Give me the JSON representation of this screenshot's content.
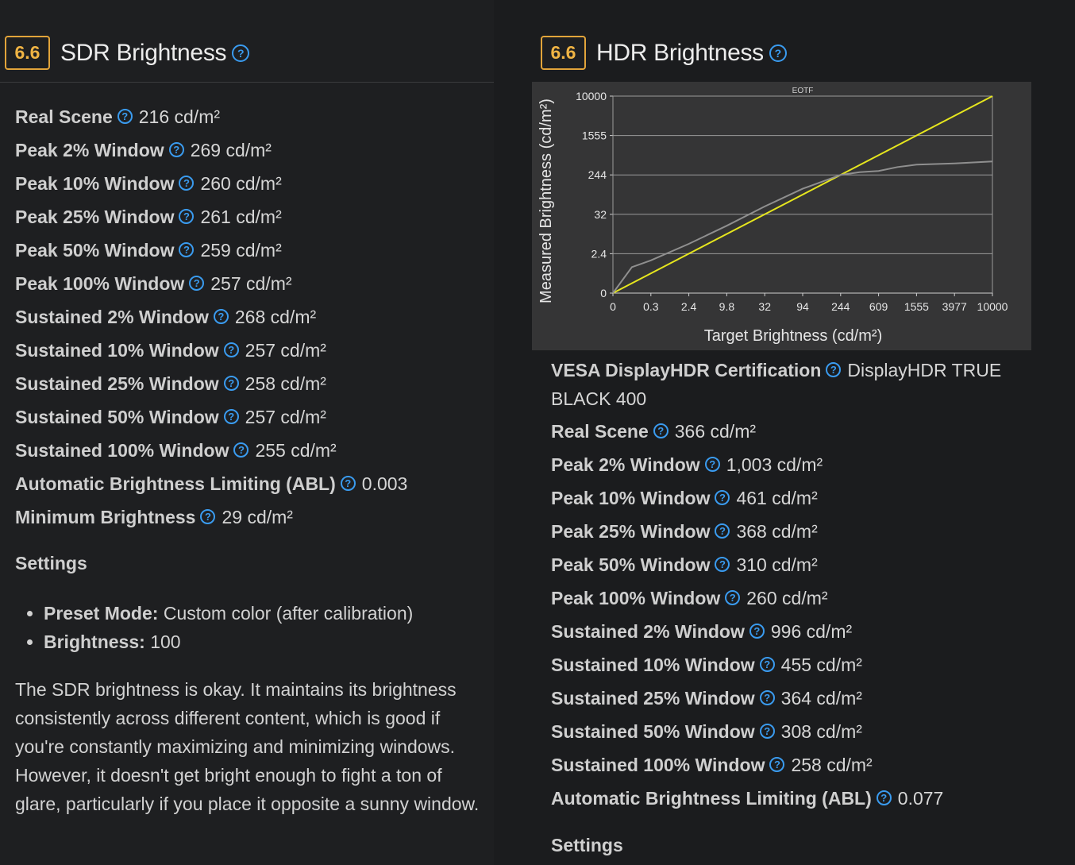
{
  "sdr": {
    "score": "6.6",
    "title": "SDR Brightness",
    "metrics": [
      {
        "label": "Real Scene",
        "value": "216 cd/m²"
      },
      {
        "label": "Peak 2% Window",
        "value": "269 cd/m²"
      },
      {
        "label": "Peak 10% Window",
        "value": "260 cd/m²"
      },
      {
        "label": "Peak 25% Window",
        "value": "261 cd/m²"
      },
      {
        "label": "Peak 50% Window",
        "value": "259 cd/m²"
      },
      {
        "label": "Peak 100% Window",
        "value": "257 cd/m²"
      },
      {
        "label": "Sustained 2% Window",
        "value": "268 cd/m²"
      },
      {
        "label": "Sustained 10% Window",
        "value": "257 cd/m²"
      },
      {
        "label": "Sustained 25% Window",
        "value": "258 cd/m²"
      },
      {
        "label": "Sustained 50% Window",
        "value": "257 cd/m²"
      },
      {
        "label": "Sustained 100% Window",
        "value": "255 cd/m²"
      },
      {
        "label": "Automatic Brightness Limiting (ABL)",
        "value": "0.003"
      },
      {
        "label": "Minimum Brightness",
        "value": "29 cd/m²"
      }
    ],
    "settings_heading": "Settings",
    "settings": [
      {
        "label": "Preset Mode:",
        "value": "Custom color (after calibration)"
      },
      {
        "label": "Brightness:",
        "value": "100"
      }
    ],
    "description": "The SDR brightness is okay. It maintains its brightness consistently across different content, which is good if you're constantly maximizing and minimizing windows. However, it doesn't get bright enough to fight a ton of glare, particularly if you place it opposite a sunny window."
  },
  "hdr": {
    "score": "6.6",
    "title": "HDR Brightness",
    "certification": {
      "label": "VESA DisplayHDR Certification",
      "value": "DisplayHDR TRUE BLACK 400"
    },
    "metrics": [
      {
        "label": "Real Scene",
        "value": "366 cd/m²"
      },
      {
        "label": "Peak 2% Window",
        "value": "1,003 cd/m²"
      },
      {
        "label": "Peak 10% Window",
        "value": "461 cd/m²"
      },
      {
        "label": "Peak 25% Window",
        "value": "368 cd/m²"
      },
      {
        "label": "Peak 50% Window",
        "value": "310 cd/m²"
      },
      {
        "label": "Peak 100% Window",
        "value": "260 cd/m²"
      },
      {
        "label": "Sustained 2% Window",
        "value": "996 cd/m²"
      },
      {
        "label": "Sustained 10% Window",
        "value": "455 cd/m²"
      },
      {
        "label": "Sustained 25% Window",
        "value": "364 cd/m²"
      },
      {
        "label": "Sustained 50% Window",
        "value": "308 cd/m²"
      },
      {
        "label": "Sustained 100% Window",
        "value": "258 cd/m²"
      },
      {
        "label": "Automatic Brightness Limiting (ABL)",
        "value": "0.077"
      }
    ],
    "settings_heading": "Settings"
  },
  "help_glyph": "?",
  "chart_data": {
    "type": "line",
    "title": "EOTF",
    "xlabel": "Target Brightness (cd/m²)",
    "ylabel": "Measured Brightness (cd/m²)",
    "x_ticks": [
      "0",
      "0.3",
      "2.4",
      "9.8",
      "32",
      "94",
      "244",
      "609",
      "1555",
      "3977",
      "10000"
    ],
    "y_ticks": [
      "0",
      "2.4",
      "32",
      "244",
      "1555",
      "10000"
    ],
    "grid": true,
    "colors": {
      "target": "#e6e61e",
      "measured": "#8f8f8f",
      "axis": "#cfcfcf",
      "grid": "#9a9a9a",
      "background": "#353536"
    },
    "series": [
      {
        "name": "Target",
        "x_index": [
          0,
          10
        ],
        "y_index": [
          0,
          5
        ]
      },
      {
        "name": "Measured",
        "x_index": [
          0,
          0.5,
          1,
          2,
          3,
          4,
          5,
          6,
          6.5,
          7,
          7.5,
          8,
          9,
          10
        ],
        "y_index": [
          0,
          0.66,
          0.83,
          1.25,
          1.71,
          2.2,
          2.65,
          3.0,
          3.07,
          3.1,
          3.2,
          3.26,
          3.29,
          3.34
        ]
      }
    ]
  }
}
